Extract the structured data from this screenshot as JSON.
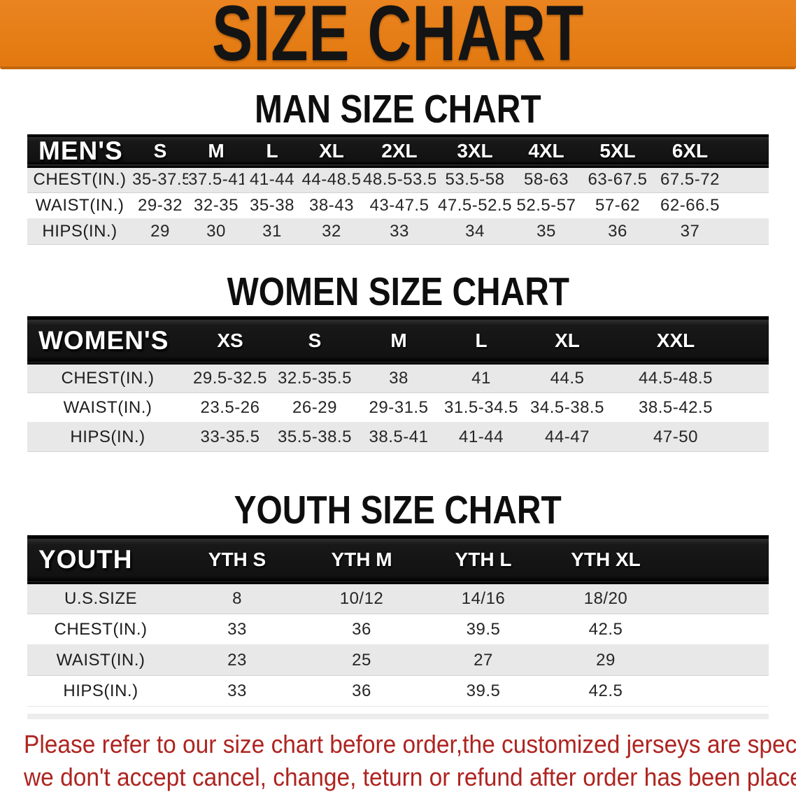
{
  "banner": {
    "title": "SIZE CHART",
    "bg_color": "#E67E17",
    "border_color": "#C2650D",
    "text_color": "#141414"
  },
  "sections": [
    {
      "heading": "MAN SIZE CHART",
      "label": "MEN'S",
      "columns": [
        "S",
        "M",
        "L",
        "XL",
        "2XL",
        "3XL",
        "4XL",
        "5XL",
        "6XL"
      ],
      "rows": [
        {
          "label": "CHEST(IN.)",
          "values": [
            "35-37.5",
            "37.5-41",
            "41-44",
            "44-48.5",
            "48.5-53.5",
            "53.5-58",
            "58-63",
            "63-67.5",
            "67.5-72"
          ]
        },
        {
          "label": "WAIST(IN.)",
          "values": [
            "29-32",
            "32-35",
            "35-38",
            "38-43",
            "43-47.5",
            "47.5-52.5",
            "52.5-57",
            "57-62",
            "62-66.5"
          ]
        },
        {
          "label": "HIPS(IN.)",
          "values": [
            "29",
            "30",
            "31",
            "32",
            "33",
            "34",
            "35",
            "36",
            "37"
          ]
        }
      ]
    },
    {
      "heading": "WOMEN SIZE CHART",
      "label": "WOMEN'S",
      "columns": [
        "XS",
        "S",
        "M",
        "L",
        "XL",
        "XXL"
      ],
      "rows": [
        {
          "label": "CHEST(IN.)",
          "values": [
            "29.5-32.5",
            "32.5-35.5",
            "38",
            "41",
            "44.5",
            "44.5-48.5"
          ]
        },
        {
          "label": "WAIST(IN.)",
          "values": [
            "23.5-26",
            "26-29",
            "29-31.5",
            "31.5-34.5",
            "34.5-38.5",
            "38.5-42.5"
          ]
        },
        {
          "label": "HIPS(IN.)",
          "values": [
            "33-35.5",
            "35.5-38.5",
            "38.5-41",
            "41-44",
            "44-47",
            "47-50"
          ]
        }
      ]
    },
    {
      "heading": "YOUTH SIZE CHART",
      "label": "YOUTH",
      "columns": [
        "YTH S",
        "YTH M",
        "YTH L",
        "YTH XL"
      ],
      "rows": [
        {
          "label": "U.S.SIZE",
          "values": [
            "8",
            "10/12",
            "14/16",
            "18/20"
          ]
        },
        {
          "label": "CHEST(IN.)",
          "values": [
            "33",
            "36",
            "39.5",
            "42.5"
          ]
        },
        {
          "label": "WAIST(IN.)",
          "values": [
            "23",
            "25",
            "27",
            "29"
          ]
        },
        {
          "label": "HIPS(IN.)",
          "values": [
            "33",
            "36",
            "39.5",
            "42.5"
          ]
        }
      ]
    }
  ],
  "disclaimer": {
    "line1": "Please refer to our size chart before order,the customized jerseys are special products,",
    "line2": "we don't accept cancel, change, teturn or refund after order has been placed!",
    "color": "#AE2420"
  },
  "colors": {
    "header_bar": "#141414",
    "header_text": "#FFFFFF",
    "row_alt_gray": "#E8E8E8",
    "row_white": "#FFFFFF",
    "body_text": "#262626"
  }
}
